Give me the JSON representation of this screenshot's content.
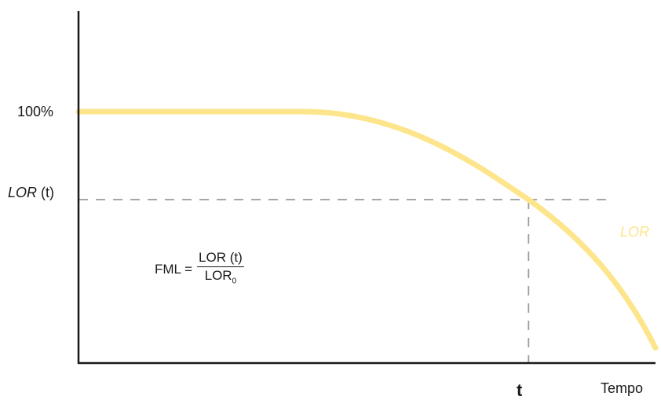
{
  "chart_data": {
    "type": "line",
    "colors": {
      "curve": "#FDE58C",
      "axis": "#1a1a1a",
      "reference": "#9a9a9a",
      "series_label": "#FDE58C"
    },
    "y_labels": {
      "top": "100%",
      "marker_italic": "LOR",
      "marker_rest": " (t)"
    },
    "x_labels": {
      "marker": "t",
      "axis": "Tempo"
    },
    "series": [
      {
        "name": "LOR"
      }
    ],
    "curve": {
      "plateau_value": 1.0,
      "plateau_end_time": 0.39,
      "marker_time": 0.78,
      "marker_value": 0.65,
      "end_time": 1.0,
      "end_value": 0.06
    },
    "formula": {
      "lhs": "FML = ",
      "numerator": "LOR (t)",
      "denominator": "LOR",
      "denominator_sub": "0"
    }
  }
}
